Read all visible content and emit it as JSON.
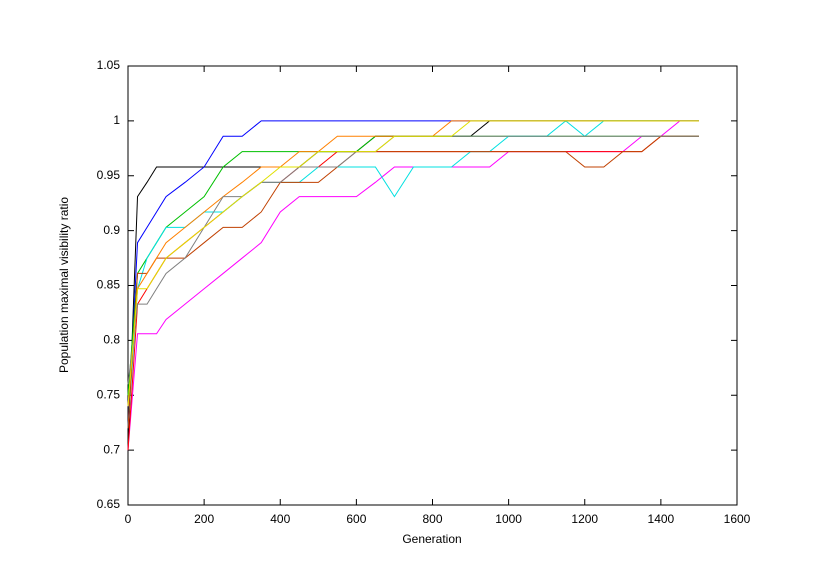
{
  "chart_data": {
    "type": "line",
    "xlabel": "Generation",
    "ylabel": "Population maximal visibility ratio",
    "x": [
      0,
      25,
      50,
      75,
      100,
      150,
      200,
      250,
      300,
      350,
      400,
      450,
      500,
      550,
      600,
      650,
      700,
      750,
      800,
      850,
      900,
      950,
      1000,
      1050,
      1100,
      1150,
      1200,
      1250,
      1300,
      1350,
      1400,
      1450,
      1500
    ],
    "series": [
      {
        "color": "#000000",
        "values": [
          0.7,
          0.931,
          0.944,
          0.958,
          0.958,
          0.958,
          0.958,
          0.958,
          0.958,
          0.958,
          0.958,
          0.958,
          0.972,
          0.972,
          0.972,
          0.986,
          0.986,
          0.986,
          0.986,
          0.986,
          0.986,
          1,
          1,
          1,
          1,
          1,
          1,
          1,
          1,
          1,
          1,
          1,
          1
        ]
      },
      {
        "color": "#0000ff",
        "values": [
          0.72,
          0.889,
          0.903,
          0.917,
          0.931,
          0.944,
          0.958,
          0.986,
          0.986,
          1,
          1,
          1,
          1,
          1,
          1,
          1,
          1,
          1,
          1,
          1,
          1,
          1,
          1,
          1,
          1,
          1,
          1,
          1,
          1,
          1,
          1,
          1,
          1
        ]
      },
      {
        "color": "#ff00ff",
        "values": [
          0.7,
          0.806,
          0.806,
          0.806,
          0.819,
          0.833,
          0.847,
          0.861,
          0.875,
          0.889,
          0.917,
          0.931,
          0.931,
          0.931,
          0.931,
          0.944,
          0.958,
          0.958,
          0.958,
          0.958,
          0.958,
          0.958,
          0.972,
          0.972,
          0.972,
          0.972,
          0.972,
          0.972,
          0.972,
          0.986,
          0.986,
          1,
          1
        ]
      },
      {
        "color": "#ff0000",
        "values": [
          0.7,
          0.833,
          0.847,
          0.861,
          0.875,
          0.889,
          0.903,
          0.917,
          0.931,
          0.944,
          0.944,
          0.958,
          0.958,
          0.972,
          0.972,
          0.972,
          0.972,
          0.972,
          0.972,
          0.972,
          0.972,
          0.972,
          0.972,
          0.972,
          0.972,
          0.972,
          0.972,
          0.972,
          0.972,
          0.972,
          0.986,
          0.986,
          0.986
        ]
      },
      {
        "color": "#00c000",
        "values": [
          0.75,
          0.861,
          0.875,
          0.889,
          0.903,
          0.917,
          0.931,
          0.958,
          0.972,
          0.972,
          0.972,
          0.972,
          0.972,
          0.972,
          0.972,
          0.986,
          0.986,
          0.986,
          0.986,
          0.986,
          0.986,
          0.986,
          0.986,
          0.986,
          0.986,
          0.986,
          0.986,
          0.986,
          0.986,
          0.986,
          0.986,
          0.986,
          0.986
        ]
      },
      {
        "color": "#00e0e0",
        "values": [
          0.72,
          0.847,
          0.875,
          0.889,
          0.903,
          0.903,
          0.917,
          0.917,
          0.931,
          0.944,
          0.944,
          0.944,
          0.958,
          0.958,
          0.958,
          0.958,
          0.931,
          0.958,
          0.958,
          0.958,
          0.972,
          0.972,
          0.986,
          0.986,
          0.986,
          1,
          0.986,
          1,
          1,
          1,
          1,
          1,
          1
        ]
      },
      {
        "color": "#c04000",
        "values": [
          0.72,
          0.861,
          0.861,
          0.875,
          0.875,
          0.875,
          0.889,
          0.903,
          0.903,
          0.917,
          0.944,
          0.944,
          0.944,
          0.958,
          0.972,
          0.972,
          0.972,
          0.972,
          0.972,
          0.972,
          0.972,
          0.972,
          0.972,
          0.972,
          0.972,
          0.972,
          0.958,
          0.958,
          0.972,
          0.972,
          0.986,
          0.986,
          0.986
        ]
      },
      {
        "color": "#ff8000",
        "values": [
          0.74,
          0.847,
          0.861,
          0.875,
          0.889,
          0.903,
          0.917,
          0.931,
          0.944,
          0.958,
          0.958,
          0.972,
          0.972,
          0.986,
          0.986,
          0.986,
          0.986,
          0.986,
          0.986,
          1,
          1,
          1,
          1,
          1,
          1,
          1,
          1,
          1,
          1,
          1,
          1,
          1,
          1
        ]
      },
      {
        "color": "#808080",
        "values": [
          0.76,
          0.833,
          0.833,
          0.847,
          0.861,
          0.875,
          0.903,
          0.931,
          0.931,
          0.944,
          0.944,
          0.958,
          0.958,
          0.958,
          0.972,
          0.972,
          0.986,
          0.986,
          0.986,
          0.986,
          0.986,
          0.986,
          0.986,
          0.986,
          0.986,
          0.986,
          0.986,
          0.986,
          0.986,
          0.986,
          0.986,
          0.986,
          0.986
        ]
      },
      {
        "color": "#e0e000",
        "values": [
          0.74,
          0.847,
          0.847,
          0.861,
          0.875,
          0.889,
          0.903,
          0.917,
          0.931,
          0.944,
          0.958,
          0.958,
          0.972,
          0.972,
          0.972,
          0.972,
          0.986,
          0.986,
          0.986,
          0.986,
          1,
          1,
          1,
          1,
          1,
          1,
          1,
          1,
          1,
          1,
          1,
          1,
          1
        ]
      }
    ],
    "xlim": [
      0,
      1600
    ],
    "xticks": [
      0,
      200,
      400,
      600,
      800,
      1000,
      1200,
      1400,
      1600
    ],
    "ylim": [
      0.65,
      1.05
    ],
    "yticks": [
      0.65,
      0.7,
      0.75,
      0.8,
      0.85,
      0.9,
      0.95,
      1,
      1.05
    ]
  }
}
